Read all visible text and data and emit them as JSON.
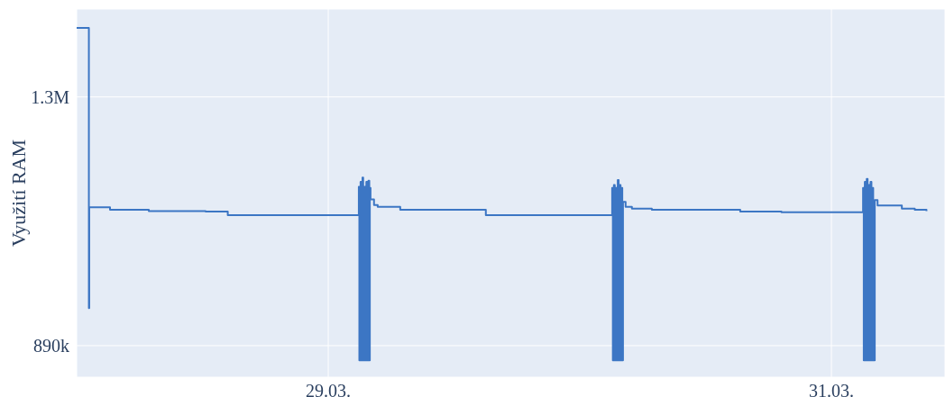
{
  "chart_data": {
    "type": "step",
    "ylabel": "Využití RAM",
    "color": "#3c76c4",
    "grid": true,
    "line_style": "solid",
    "marker": "none",
    "xlim": [
      "--03-28T00:00",
      "--03-31T10:50"
    ],
    "xticks": [
      {
        "value": "--03-29",
        "label": "29.03."
      },
      {
        "value": "--03-31",
        "label": "31.03."
      }
    ],
    "ylim": [
      838000,
      1445000
    ],
    "yticks": [
      {
        "value": 890000,
        "label": "890k"
      },
      {
        "value": 1300000,
        "label": "1.3M"
      }
    ],
    "x": [
      "--03-28T00:00",
      "--03-28T01:07",
      "--03-28T01:10",
      "--03-28T01:12",
      "--03-28T03:11",
      "--03-28T06:53",
      "--03-28T12:18",
      "--03-28T14:25",
      "--03-29T02:55",
      "--03-29T02:58",
      "--03-29T03:05",
      "--03-29T03:10",
      "--03-29T03:16",
      "--03-29T03:20",
      "--03-29T03:27",
      "--03-29T03:32",
      "--03-29T03:38",
      "--03-29T03:44",
      "--03-29T03:50",
      "--03-29T03:55",
      "--03-29T03:58",
      "--03-29T04:02",
      "--03-29T04:22",
      "--03-29T04:43",
      "--03-29T06:52",
      "--03-29T15:02",
      "--03-30T03:05",
      "--03-30T03:09",
      "--03-30T03:15",
      "--03-30T03:20",
      "--03-30T03:26",
      "--03-30T03:31",
      "--03-30T03:37",
      "--03-30T03:42",
      "--03-30T03:48",
      "--03-30T03:53",
      "--03-30T03:58",
      "--03-30T04:03",
      "--03-30T04:07",
      "--03-30T04:22",
      "--03-30T04:58",
      "--03-30T06:52",
      "--03-30T15:18",
      "--03-30T19:14",
      "--03-31T03:01",
      "--03-31T03:05",
      "--03-31T03:11",
      "--03-31T03:16",
      "--03-31T03:22",
      "--03-31T03:27",
      "--03-31T03:33",
      "--03-31T03:38",
      "--03-31T03:44",
      "--03-31T03:49",
      "--03-31T03:54",
      "--03-31T03:59",
      "--03-31T04:08",
      "--03-31T04:24",
      "--03-31T06:43",
      "--03-31T07:57",
      "--03-31T09:04"
    ],
    "values": [
      1414000,
      1414000,
      952000,
      1118000,
      1114000,
      1112000,
      1111000,
      1105000,
      1152000,
      866000,
      1160000,
      866000,
      1167000,
      866000,
      1152000,
      866000,
      1160000,
      866000,
      1162000,
      866000,
      1150000,
      1131000,
      1122000,
      1119000,
      1114000,
      1105000,
      1150000,
      866000,
      1155000,
      866000,
      1150000,
      866000,
      1163000,
      866000,
      1155000,
      866000,
      1150000,
      866000,
      1127000,
      1119000,
      1116000,
      1114000,
      1111000,
      1110000,
      1150000,
      866000,
      1160000,
      866000,
      1165000,
      866000,
      1155000,
      866000,
      1160000,
      866000,
      1150000,
      866000,
      1130000,
      1121000,
      1116000,
      1114000,
      1112000
    ]
  }
}
